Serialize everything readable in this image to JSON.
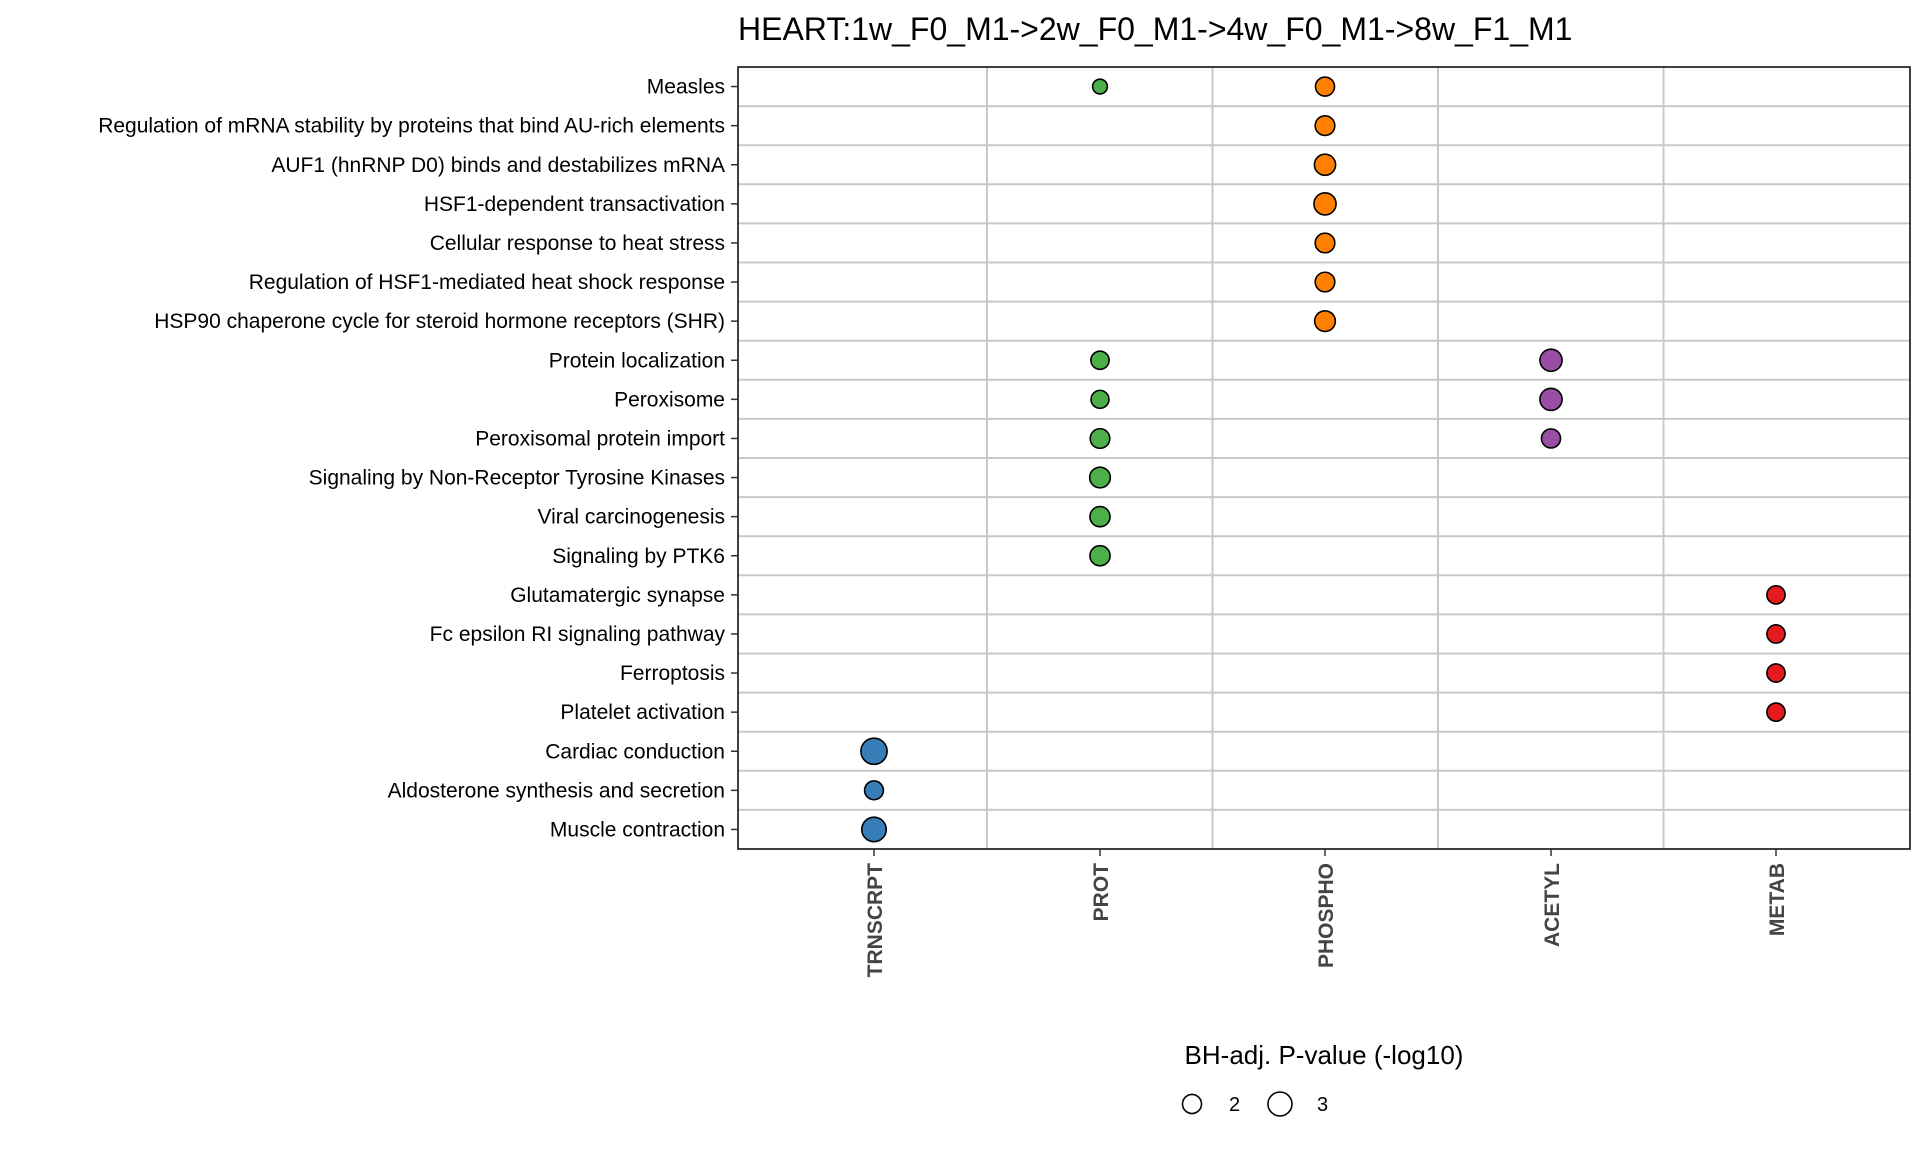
{
  "chart_data": {
    "type": "scatter",
    "title": "HEART:1w_F0_M1->2w_F0_M1->4w_F0_M1->8w_F1_M1",
    "categories_x": [
      "TRNSCRPT",
      "PROT",
      "PHOSPHO",
      "ACETYL",
      "METAB"
    ],
    "categories_y": [
      "Measles",
      "Regulation of mRNA stability by proteins that bind AU-rich elements",
      "AUF1 (hnRNP D0) binds and destabilizes mRNA",
      "HSF1-dependent transactivation",
      "Cellular response to heat stress",
      "Regulation of HSF1-mediated heat shock response",
      "HSP90 chaperone cycle for steroid hormone receptors (SHR)",
      "Protein localization",
      "Peroxisome",
      "Peroxisomal protein import",
      "Signaling by Non-Receptor Tyrosine Kinases",
      "Viral carcinogenesis",
      "Signaling by PTK6",
      "Glutamatergic synapse",
      "Fc epsilon RI signaling pathway",
      "Ferroptosis",
      "Platelet activation",
      "Cardiac conduction",
      "Aldosterone synthesis and secretion",
      "Muscle contraction"
    ],
    "colors": {
      "TRNSCRPT": "#377EB8",
      "PROT": "#4DAF4A",
      "PHOSPHO": "#FF7F00",
      "ACETYL": "#984EA3",
      "METAB": "#E41A1C"
    },
    "points": [
      {
        "x": "PROT",
        "y": "Measles",
        "value": 1.3
      },
      {
        "x": "PHOSPHO",
        "y": "Measles",
        "value": 2.0
      },
      {
        "x": "PHOSPHO",
        "y": "Regulation of mRNA stability by proteins that bind AU-rich elements",
        "value": 2.1
      },
      {
        "x": "PHOSPHO",
        "y": "AUF1 (hnRNP D0) binds and destabilizes mRNA",
        "value": 2.4
      },
      {
        "x": "PHOSPHO",
        "y": "HSF1-dependent transactivation",
        "value": 2.6
      },
      {
        "x": "PHOSPHO",
        "y": "Cellular response to heat stress",
        "value": 2.1
      },
      {
        "x": "PHOSPHO",
        "y": "Regulation of HSF1-mediated heat shock response",
        "value": 2.1
      },
      {
        "x": "PHOSPHO",
        "y": "HSP90 chaperone cycle for steroid hormone receptors (SHR)",
        "value": 2.3
      },
      {
        "x": "PROT",
        "y": "Protein localization",
        "value": 1.85
      },
      {
        "x": "ACETYL",
        "y": "Protein localization",
        "value": 2.6
      },
      {
        "x": "PROT",
        "y": "Peroxisome",
        "value": 1.8
      },
      {
        "x": "ACETYL",
        "y": "Peroxisome",
        "value": 2.6
      },
      {
        "x": "PROT",
        "y": "Peroxisomal protein import",
        "value": 2.1
      },
      {
        "x": "ACETYL",
        "y": "Peroxisomal protein import",
        "value": 2.0
      },
      {
        "x": "PROT",
        "y": "Signaling by Non-Receptor Tyrosine Kinases",
        "value": 2.3
      },
      {
        "x": "PROT",
        "y": "Viral carcinogenesis",
        "value": 2.2
      },
      {
        "x": "PROT",
        "y": "Signaling by PTK6",
        "value": 2.2
      },
      {
        "x": "METAB",
        "y": "Glutamatergic synapse",
        "value": 1.85
      },
      {
        "x": "METAB",
        "y": "Fc epsilon RI signaling pathway",
        "value": 1.85
      },
      {
        "x": "METAB",
        "y": "Ferroptosis",
        "value": 1.85
      },
      {
        "x": "METAB",
        "y": "Platelet activation",
        "value": 1.85
      },
      {
        "x": "TRNSCRPT",
        "y": "Cardiac conduction",
        "value": 3.5
      },
      {
        "x": "TRNSCRPT",
        "y": "Aldosterone synthesis and secretion",
        "value": 1.95
      },
      {
        "x": "TRNSCRPT",
        "y": "Muscle contraction",
        "value": 3.1
      }
    ],
    "legend": {
      "title": "BH-adj. P-value (-log10)",
      "position": "bottom",
      "breaks": [
        2,
        3
      ]
    },
    "grid": true
  }
}
